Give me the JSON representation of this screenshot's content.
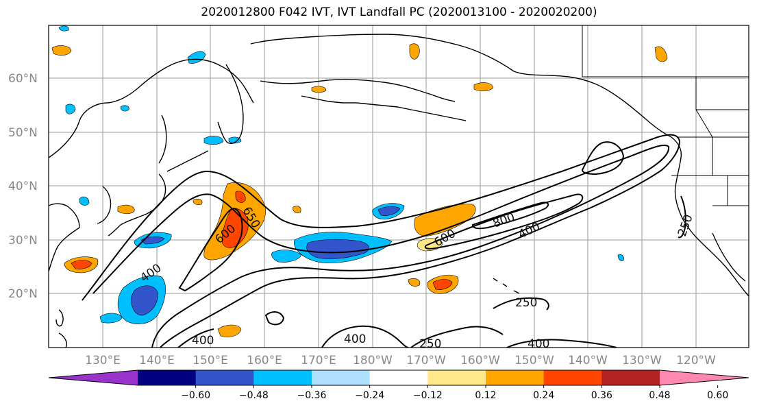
{
  "title": "2020012800 F042 IVT, IVT Landfall PC (2020013100 - 2020020200)",
  "lat_labels": [
    "60°N",
    "50°N",
    "40°N",
    "30°N",
    "20°N"
  ],
  "lon_labels": [
    "130°E",
    "140°E",
    "150°E",
    "160°E",
    "170°E",
    "180°W",
    "170°W",
    "160°W",
    "150°W",
    "140°W",
    "130°W",
    "120°W"
  ],
  "contour_labels": [
    "650",
    "600",
    "400",
    "400",
    "250",
    "400",
    "250",
    "400",
    "600",
    "800",
    "400",
    "250"
  ],
  "colorbar": {
    "ticks": [
      "−0.60",
      "−0.48",
      "−0.36",
      "−0.24",
      "−0.12",
      "0.12",
      "0.24",
      "0.36",
      "0.48",
      "0.60"
    ],
    "colors": [
      "#9933cc",
      "#000080",
      "#3355cc",
      "#00bfff",
      "#b0e0ff",
      "#ffffff",
      "#ffe88a",
      "#ffa500",
      "#ff4500",
      "#b22222",
      "#ff88b0"
    ]
  }
}
